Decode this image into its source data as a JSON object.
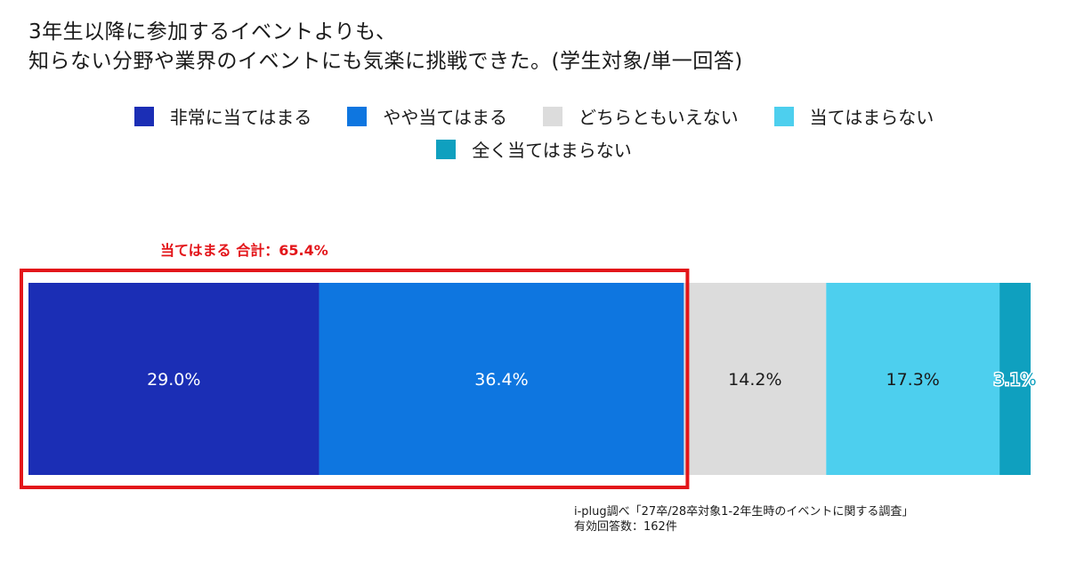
{
  "title_lines": [
    "3年生以降に参加するイベントよりも、",
    "知らない分野や業界のイベントにも気楽に挑戦できた。(学生対象/単一回答)"
  ],
  "highlight": {
    "label": "当てはまる 合計：65.4%",
    "color": "#e3151a"
  },
  "source": {
    "line1": "i-plug調べ「27卒/28卒対象1-2年生時のイベントに関する調査」",
    "line2": "有効回答数：162件"
  },
  "chart_data": {
    "type": "bar",
    "orientation": "horizontal-stacked-100",
    "unit": "%",
    "categories": [
      ""
    ],
    "legend_placement": "top",
    "grid": false,
    "series": [
      {
        "name": "非常に当てはまる",
        "values": [
          29.0
        ],
        "label": "29.0%",
        "color": "#1b2eb5"
      },
      {
        "name": "やや当てはまる",
        "values": [
          36.4
        ],
        "label": "36.4%",
        "color": "#0e76e0"
      },
      {
        "name": "どちらともいえない",
        "values": [
          14.2
        ],
        "label": "14.2%",
        "color": "#dcdcdc"
      },
      {
        "name": "当てはまらない",
        "values": [
          17.3
        ],
        "label": "17.3%",
        "color": "#4dcfee"
      },
      {
        "name": "全く当てはまらない",
        "values": [
          3.1
        ],
        "label": "3.1%",
        "color": "#0fa0bf"
      }
    ]
  }
}
